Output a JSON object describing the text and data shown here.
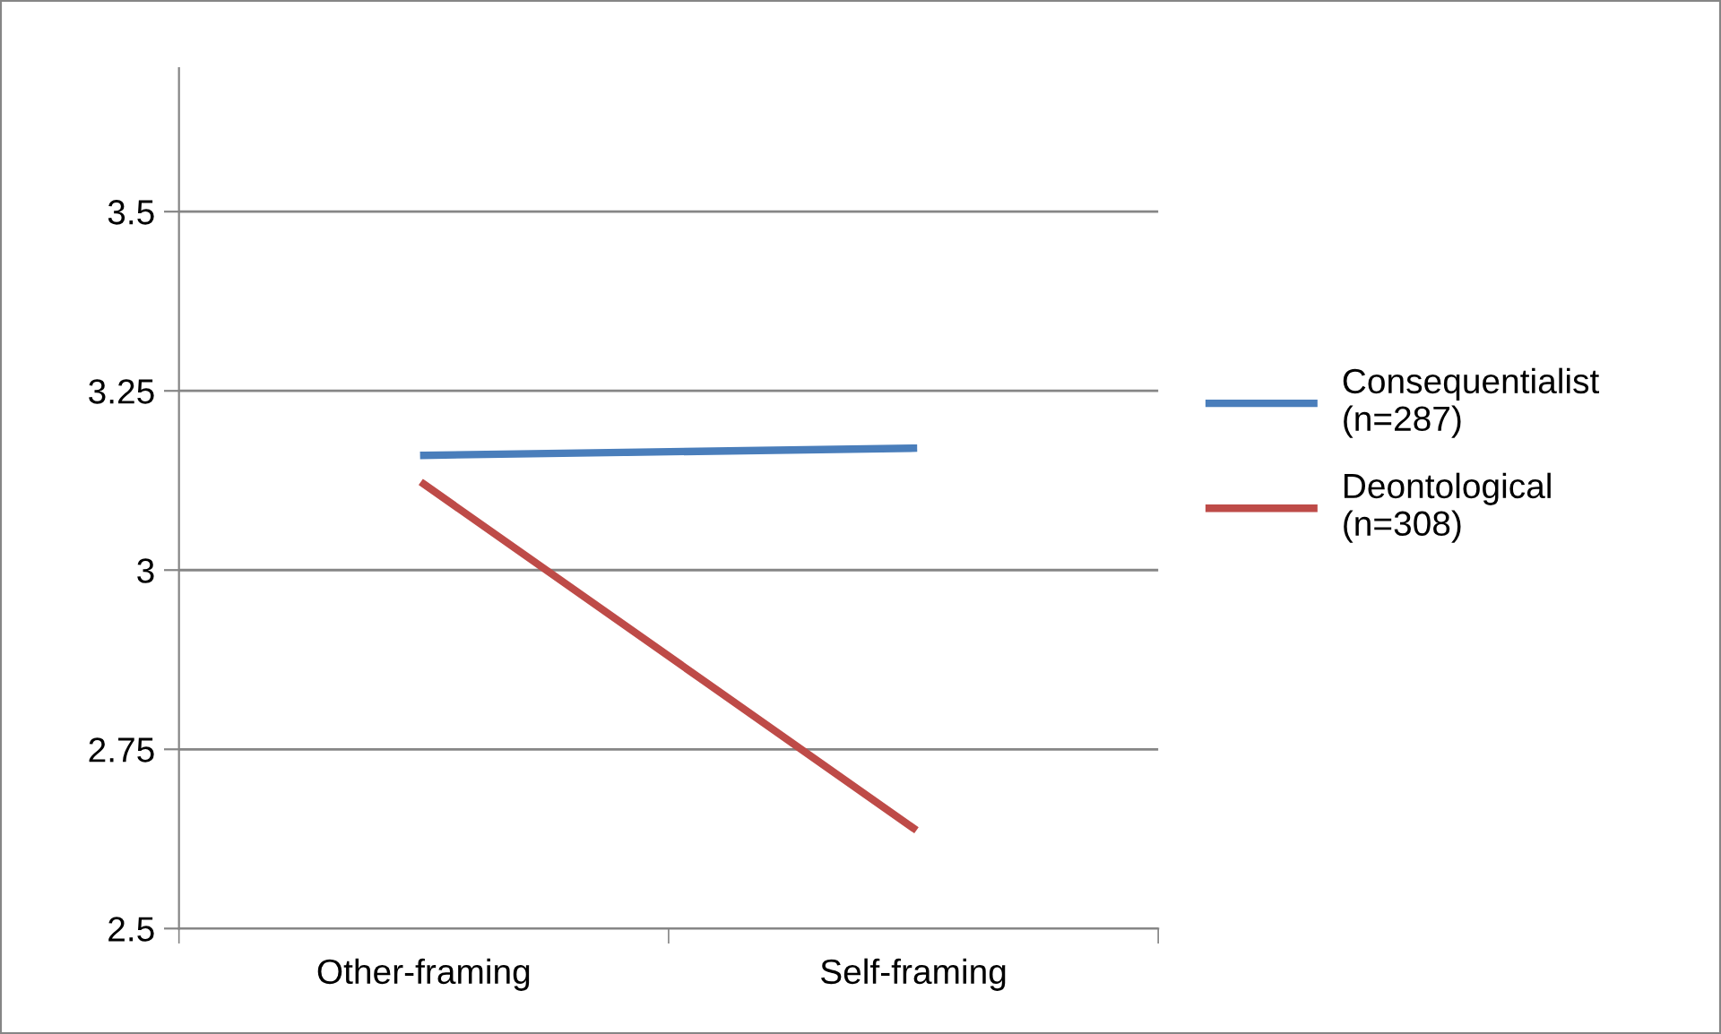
{
  "chart_data": {
    "type": "line",
    "categories": [
      "Other-framing",
      "Self-framing"
    ],
    "series": [
      {
        "name": "Consequentialist\n(n=287)",
        "color": "#4a7ebb",
        "values": [
          3.16,
          3.17
        ]
      },
      {
        "name": "Deontological\n(n=308)",
        "color": "#be4b48",
        "values": [
          3.12,
          2.64
        ]
      }
    ],
    "ylim": [
      2.5,
      3.7
    ],
    "yticks": [
      2.5,
      2.75,
      3,
      3.25,
      3.5
    ],
    "grid": "y",
    "legend": "right",
    "marker": "none"
  }
}
